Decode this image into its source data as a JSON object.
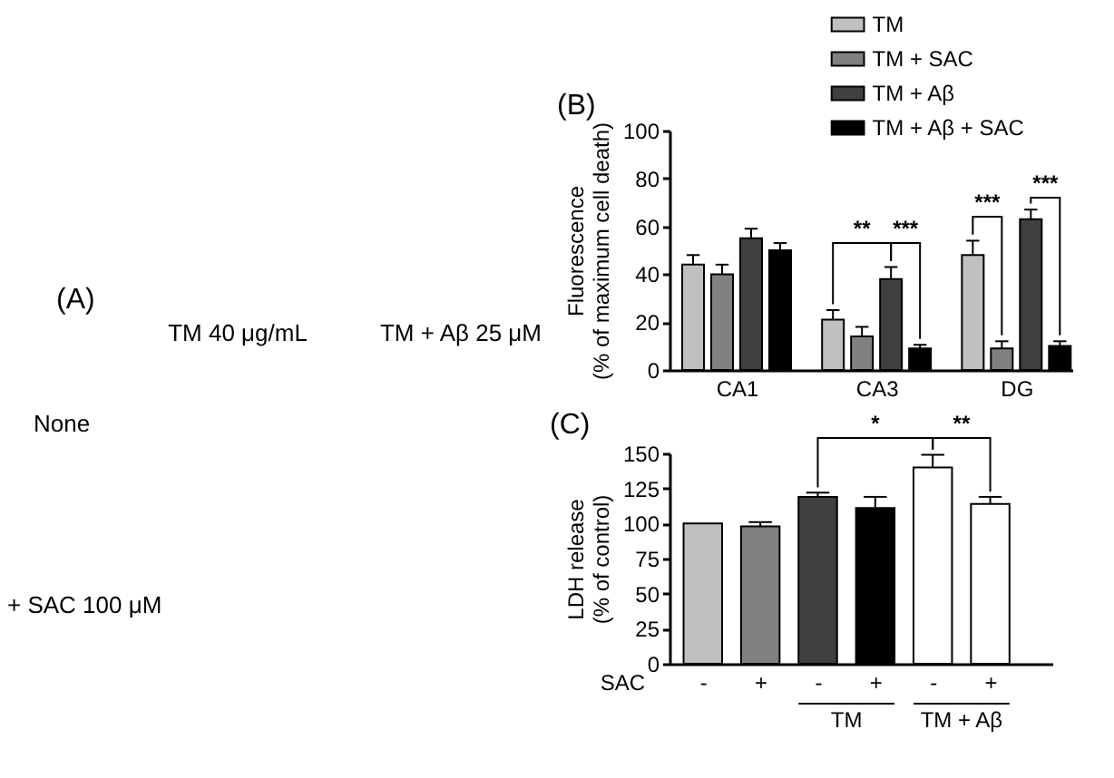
{
  "chart_data": [
    {
      "type": "other",
      "title": "(A)",
      "annotations": [
        "TM 40 μg/mL",
        "TM + Aβ 25 μM",
        "None",
        "+ SAC 100 μM"
      ]
    },
    {
      "type": "bar",
      "title": "(B)",
      "ylabel": "Fluorescence (% of maximum cell death)",
      "categories": [
        "CA1",
        "CA3",
        "DG"
      ],
      "series": [
        {
          "name": "TM",
          "color": "#c0c0c0",
          "values": [
            44,
            21,
            48
          ],
          "errors": [
            4,
            4,
            6
          ]
        },
        {
          "name": "TM + SAC",
          "color": "#808080",
          "values": [
            40,
            14,
            9
          ],
          "errors": [
            4,
            4,
            3
          ]
        },
        {
          "name": "TM + Aβ",
          "color": "#404040",
          "values": [
            55,
            38,
            63
          ],
          "errors": [
            4,
            5,
            4
          ]
        },
        {
          "name": "TM + Aβ + SAC",
          "color": "#000000",
          "values": [
            50,
            9,
            10
          ],
          "errors": [
            3,
            1.5,
            2
          ]
        }
      ],
      "ylim": [
        0,
        100
      ],
      "yticks": [
        0,
        20,
        40,
        60,
        80,
        100
      ],
      "legend": "top",
      "annotations": [
        {
          "text": "**",
          "x": "CA3",
          "y": 38
        },
        {
          "text": "***",
          "x": "CA3",
          "y": 38
        },
        {
          "text": "***",
          "x": "DG",
          "y": 48
        },
        {
          "text": "***",
          "x": "DG",
          "y": 63
        }
      ]
    },
    {
      "type": "bar",
      "title": "(C)",
      "xlabel": "SAC",
      "ylabel": "LDH release (% of control)",
      "categories": [
        "-",
        "+",
        "-",
        "+",
        "-",
        "+"
      ],
      "values": [
        100,
        98,
        119,
        111,
        140,
        114
      ],
      "colors": [
        "#c0c0c0",
        "#808080",
        "#404040",
        "#000000",
        "#ffffff",
        "#ffffff"
      ],
      "errors": [
        null,
        3,
        3,
        8,
        9,
        5
      ],
      "ylim": [
        0,
        150
      ],
      "yticks": [
        0,
        25,
        50,
        75,
        100,
        125,
        150
      ],
      "annotations": [
        "*",
        {
          "text": "**",
          "y": 140
        },
        "TM",
        "TM + Aβ"
      ]
    }
  ]
}
